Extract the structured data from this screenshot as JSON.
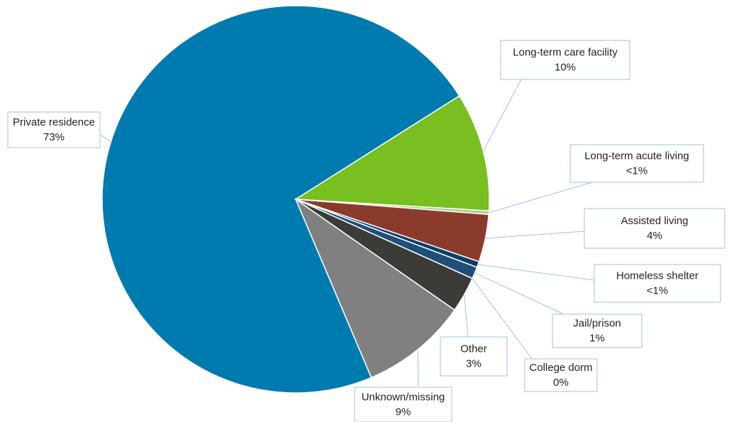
{
  "chart_data": {
    "type": "pie",
    "categories": [
      "Private residence",
      "Long-term care facility",
      "Long-term acute living",
      "Assisted living",
      "Homeless shelter",
      "Jail/prison",
      "College dorm",
      "Other",
      "Unknown/missing"
    ],
    "values": [
      73,
      10,
      0.3,
      4,
      0.5,
      1,
      0,
      3,
      9
    ],
    "value_labels": [
      "73%",
      "10%",
      "<1%",
      "4%",
      "<1%",
      "1%",
      "0%",
      "3%",
      "9%"
    ],
    "colors": [
      "#007bb0",
      "#78bf1f",
      "#a9d18e",
      "#8b3b2b",
      "#0c3e6b",
      "#1f4e79",
      "#5b9bd5",
      "#3b3b37",
      "#808080"
    ]
  }
}
